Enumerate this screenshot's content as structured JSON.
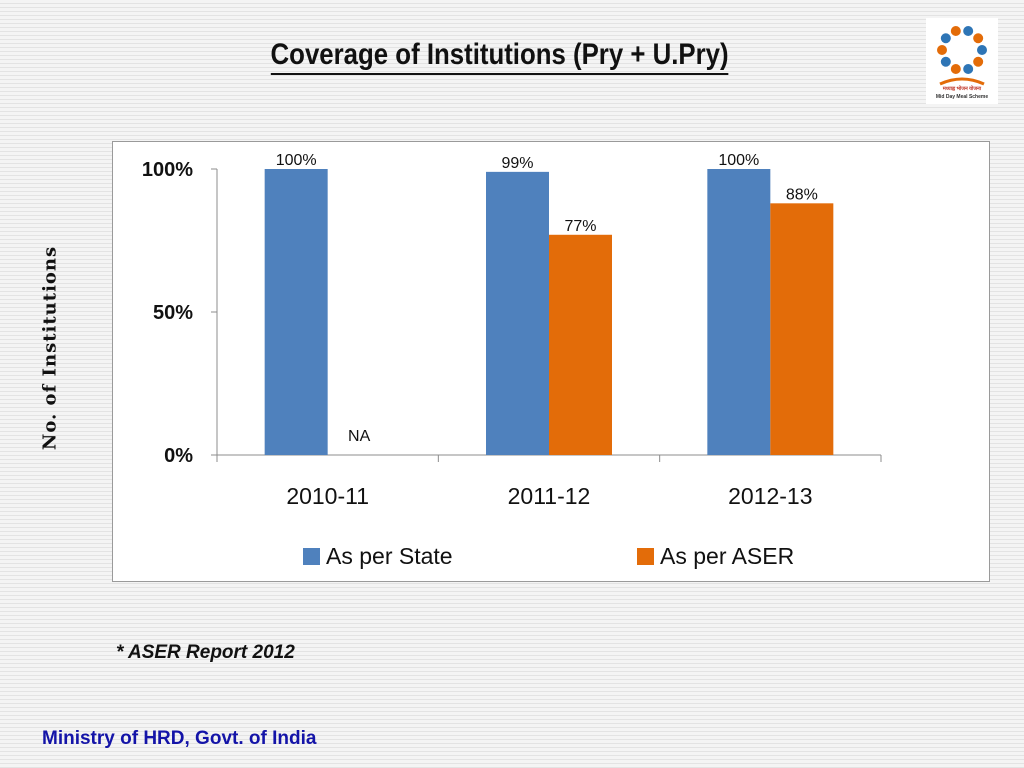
{
  "slide": {
    "title": "Coverage of Institutions  (Pry + U.Pry)",
    "footnote": "* ASER Report 2012",
    "footer": "Ministry of HRD, Govt. of India"
  },
  "logo": {
    "icon": "mid-day-meal-scheme-logo",
    "text_line1": "मध्याह्न भोजन योजना",
    "text_line2": "Mid Day Meal Scheme"
  },
  "chart_data": {
    "type": "bar",
    "title": "",
    "ylabel": "No. of Institutions",
    "xlabel": "",
    "categories": [
      "2010-11",
      "2011-12",
      "2012-13"
    ],
    "ylim": [
      0,
      100
    ],
    "yticks": [
      0,
      50,
      100
    ],
    "ytick_labels": [
      "0%",
      "50%",
      "100%"
    ],
    "grid": false,
    "legend_position": "bottom",
    "series": [
      {
        "name": "As per State",
        "color": "#4f81bd",
        "values": [
          100,
          99,
          100
        ],
        "labels": [
          "100%",
          "99%",
          "100%"
        ]
      },
      {
        "name": "As per ASER",
        "color": "#e36c09",
        "values": [
          null,
          77,
          88
        ],
        "labels": [
          "NA",
          "77%",
          "88%"
        ]
      }
    ]
  }
}
